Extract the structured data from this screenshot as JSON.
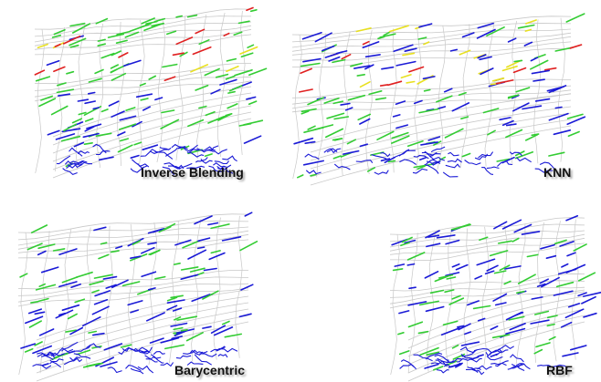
{
  "panels": [
    {
      "id": "inverse-blending",
      "label": "Inverse Blending",
      "mode": "heat"
    },
    {
      "id": "knn",
      "label": "KNN",
      "mode": "warm"
    },
    {
      "id": "barycentric",
      "label": "Barycentric",
      "mode": "cool"
    },
    {
      "id": "rbf",
      "label": "RBF",
      "mode": "cool"
    }
  ],
  "colors": {
    "mesh": "#c8c8c8",
    "low": "#1a1ad6",
    "mid": "#33cc33",
    "high": "#e8e020",
    "peak": "#e02020",
    "label_text": "#111111"
  }
}
